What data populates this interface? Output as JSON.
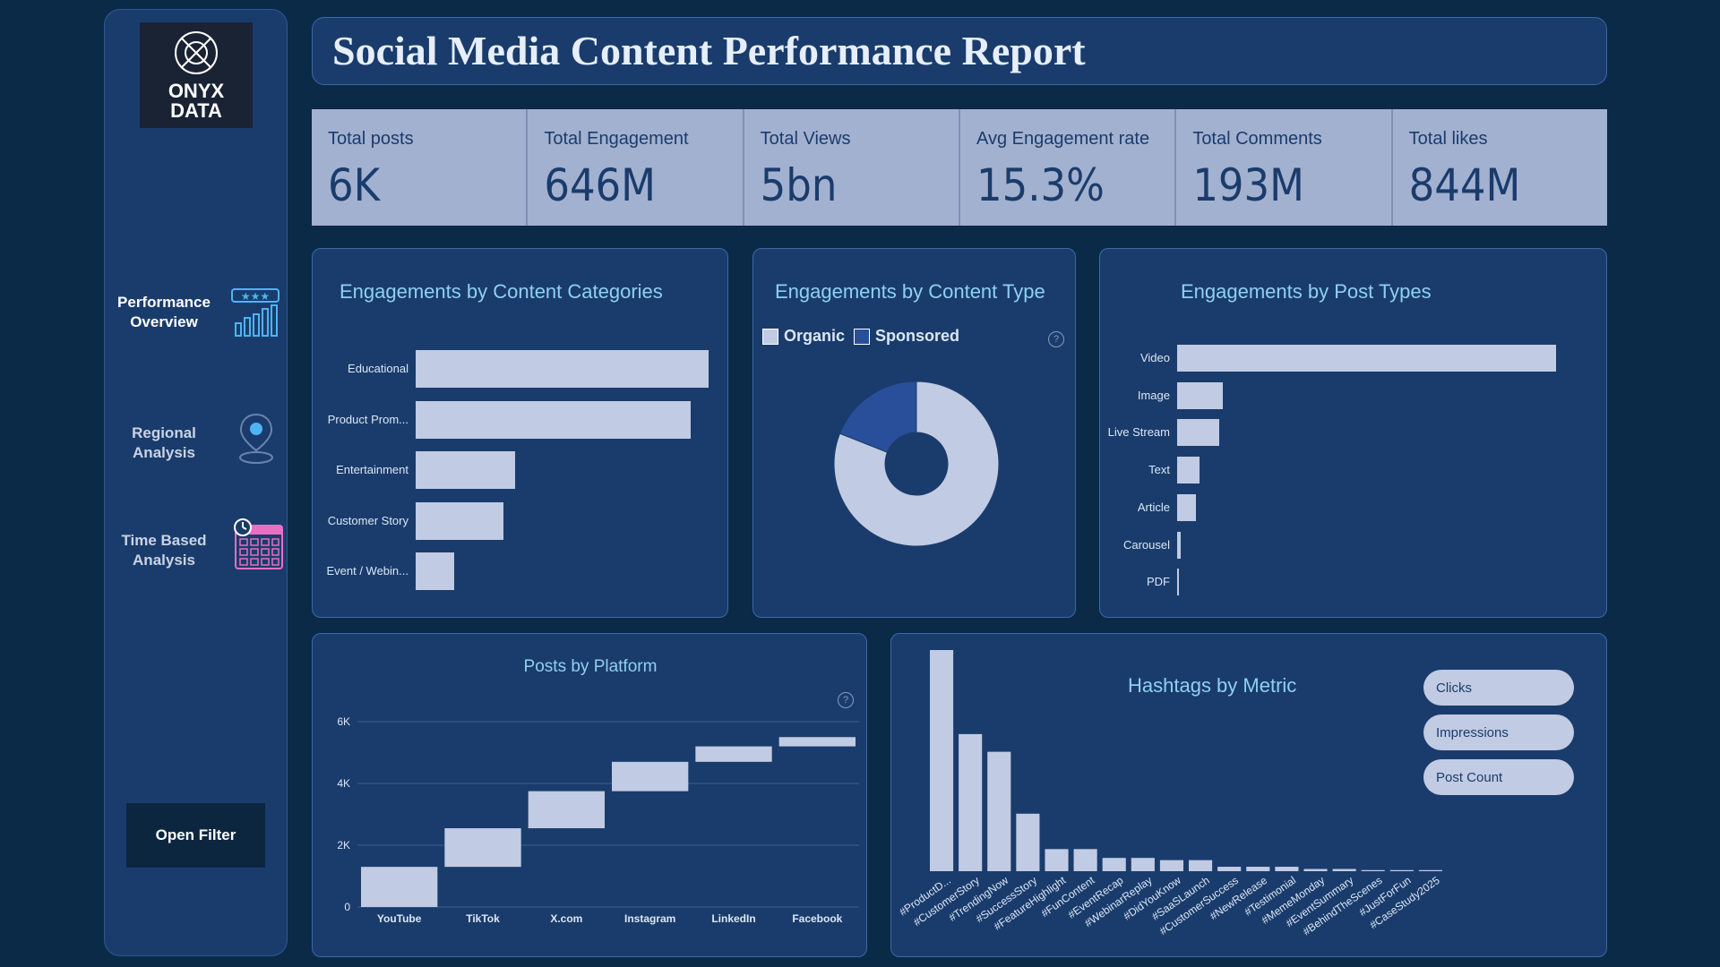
{
  "sidebar": {
    "logo_text": "ONYX\nDATA",
    "nav": [
      {
        "label": "Performance\nOverview",
        "icon": "bar-chart-stars-icon"
      },
      {
        "label": "Regional\nAnalysis",
        "icon": "map-pin-icon"
      },
      {
        "label": "Time Based\nAnalysis",
        "icon": "calendar-clock-icon"
      }
    ],
    "open_filter": "Open Filter"
  },
  "header": {
    "title": "Social Media Content Performance Report"
  },
  "kpis": [
    {
      "label": "Total posts",
      "value": "6K"
    },
    {
      "label": "Total Engagement",
      "value": "646M"
    },
    {
      "label": "Total Views",
      "value": "5bn"
    },
    {
      "label": "Avg Engagement rate",
      "value": "15.3%"
    },
    {
      "label": "Total Comments",
      "value": "193M"
    },
    {
      "label": "Total likes",
      "value": "844M"
    }
  ],
  "colors": {
    "bar": "#c1cbe3",
    "sponsored": "#2a4f9a",
    "organic": "#c1cbe3",
    "panel": "#1a3c6c"
  },
  "chart_data": [
    {
      "type": "bar",
      "orientation": "horizontal",
      "title": "Engagements by Content Categories",
      "categories": [
        "Educational",
        "Product Prom...",
        "Entertainment",
        "Customer Story",
        "Event / Webin..."
      ],
      "values": [
        100,
        94,
        34,
        30,
        13
      ]
    },
    {
      "type": "pie",
      "variant": "donut",
      "title": "Engagements by Content Type",
      "legend": [
        "Organic",
        "Sponsored"
      ],
      "values": [
        81,
        19
      ]
    },
    {
      "type": "bar",
      "orientation": "horizontal",
      "title": "Engagements by Post Types",
      "categories": [
        "Video",
        "Image",
        "Live Stream",
        "Text",
        "Article",
        "Carousel",
        "PDF"
      ],
      "values": [
        100,
        12,
        11,
        6,
        5,
        1,
        0.5
      ]
    },
    {
      "type": "bar",
      "variant": "waterfall",
      "title": "Posts by Platform",
      "categories": [
        "YouTube",
        "TikTok",
        "X.com",
        "Instagram",
        "LinkedIn",
        "Facebook"
      ],
      "values": [
        1300,
        1250,
        1200,
        950,
        500,
        300
      ],
      "ylim": [
        0,
        6000
      ],
      "yticks": [
        "0",
        "2K",
        "4K",
        "6K"
      ],
      "ytick_values": [
        0,
        2000,
        4000,
        6000
      ]
    },
    {
      "type": "bar",
      "title": "Hashtags by Metric",
      "categories": [
        "#ProductD...",
        "#CustomerStory",
        "#TrendingNow",
        "#SuccessStory",
        "#FeatureHighlight",
        "#FunContent",
        "#EventRecap",
        "#WebinarReplay",
        "#DidYouKnow",
        "#SaaSLaunch",
        "#CustomerSuccess",
        "#NewRelease",
        "#Testimonial",
        "#MemeMonday",
        "#EventSummary",
        "#BehindTheScenes",
        "#JustForFun",
        "#CaseStudy2025"
      ],
      "values": [
        100,
        62,
        54,
        26,
        10,
        10,
        6,
        6,
        5,
        5,
        2,
        2,
        2,
        1,
        1,
        0.5,
        0.5,
        0.5
      ],
      "metric_buttons": [
        "Clicks",
        "Impressions",
        "Post Count"
      ]
    }
  ]
}
